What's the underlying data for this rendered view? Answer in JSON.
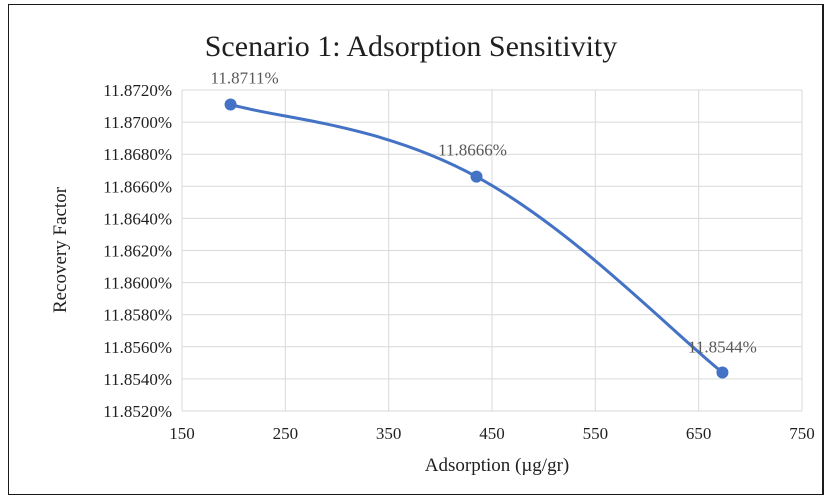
{
  "chart_data": {
    "type": "scatter",
    "title": "Scenario 1: Adsorption Sensitivity",
    "xlabel": "Adsorption (µg/gr)",
    "ylabel": "Recovery Factor",
    "xlim": [
      150,
      750
    ],
    "ylim": [
      11.852,
      11.872
    ],
    "x_ticks": [
      "150",
      "250",
      "350",
      "450",
      "550",
      "650",
      "750"
    ],
    "y_ticks": [
      "11.8520%",
      "11.8540%",
      "11.8560%",
      "11.8580%",
      "11.8600%",
      "11.8620%",
      "11.8640%",
      "11.8660%",
      "11.8680%",
      "11.8700%",
      "11.8720%"
    ],
    "grid": true,
    "smooth_line": true,
    "series_color": "#4472c4",
    "series": [
      {
        "x": [
          197,
          435,
          673
        ],
        "y": [
          11.8711,
          11.8666,
          11.8544
        ],
        "labels": [
          "11.8711%",
          "11.8666%",
          "11.8544%"
        ]
      }
    ]
  }
}
